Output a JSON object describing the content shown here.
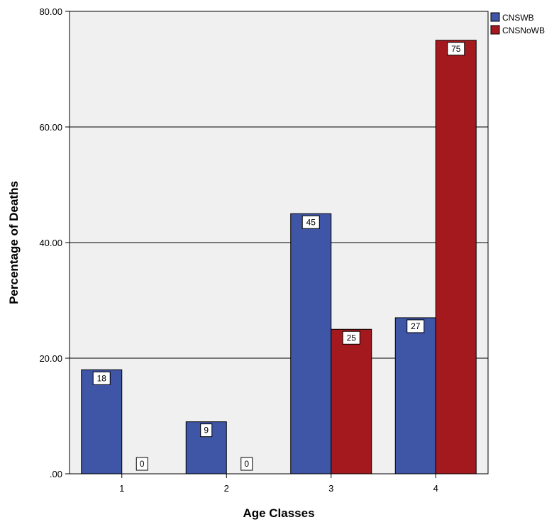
{
  "chart_data": {
    "type": "bar",
    "categories": [
      "1",
      "2",
      "3",
      "4"
    ],
    "series": [
      {
        "name": "CNSWB",
        "values": [
          18,
          9,
          45,
          27
        ],
        "color": "#3f55a5"
      },
      {
        "name": "CNSNoWB",
        "values": [
          0,
          0,
          25,
          75
        ],
        "color": "#a3191d"
      }
    ],
    "data_labels": [
      [
        "18",
        "9",
        "45",
        "27"
      ],
      [
        "0",
        "0",
        "25",
        "75"
      ]
    ],
    "xlabel": "Age Classes",
    "ylabel": "Percentage of Deaths",
    "ylim": [
      0,
      80
    ],
    "yticks": [
      0,
      20,
      40,
      60,
      80
    ],
    "ytick_labels": [
      ".00",
      "20.00",
      "40.00",
      "60.00",
      "80.00"
    ],
    "grid": true,
    "legend_position": "top-right",
    "plot_background": "#f0f0f0"
  }
}
